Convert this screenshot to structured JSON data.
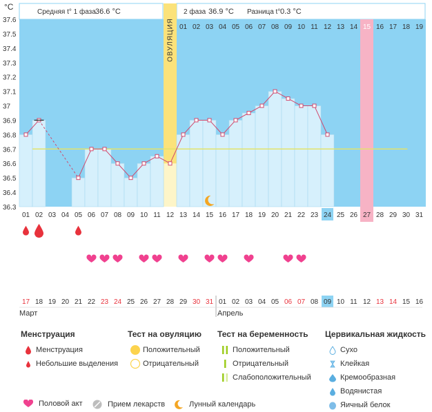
{
  "header": {
    "unit": "°C",
    "phase1_label": "Средняя t° 1 фаза",
    "phase1_value": "36.6 °C",
    "phase2_label": "2 фаза",
    "phase2_value": "36.9 °C",
    "diff_label": "Разница t°",
    "diff_value": "0.3 °C"
  },
  "chart_data": {
    "type": "line",
    "ovulation_label": "ОВУЛЯЦИЯ",
    "ylim": [
      36.3,
      37.6
    ],
    "y_ticks": [
      "37.6",
      "37.5",
      "37.4",
      "37.3",
      "37.2",
      "37.1",
      "37",
      "36.9",
      "36.8",
      "36.7",
      "36.6",
      "36.5",
      "36.4",
      "36.3"
    ],
    "cycle_days": [
      "01",
      "02",
      "03",
      "04",
      "05",
      "06",
      "07",
      "08",
      "09",
      "10",
      "11",
      "12",
      "13",
      "14",
      "15",
      "16",
      "17",
      "18",
      "19",
      "20",
      "21",
      "22",
      "23",
      "24",
      "25",
      "26",
      "27",
      "28",
      "29",
      "30",
      "31"
    ],
    "top_days": [
      "01",
      "02",
      "03",
      "04",
      "05",
      "06",
      "07",
      "08",
      "09",
      "10",
      "11",
      "12",
      "13",
      "14",
      "15",
      "16",
      "17",
      "18",
      "19"
    ],
    "calendar_dates": [
      "17",
      "18",
      "19",
      "20",
      "21",
      "22",
      "23",
      "24",
      "25",
      "26",
      "27",
      "28",
      "29",
      "30",
      "31",
      "01",
      "02",
      "03",
      "04",
      "05",
      "06",
      "07",
      "08",
      "09",
      "10",
      "11",
      "12",
      "13",
      "14",
      "15",
      "16"
    ],
    "weekend_dates": [
      0,
      6,
      7,
      13,
      14,
      20,
      21,
      27,
      28
    ],
    "today_index": 23,
    "highlight_index": 26,
    "ovulation_index": 11,
    "coverline": 36.7,
    "temperatures": [
      36.8,
      36.9,
      null,
      null,
      36.5,
      36.7,
      36.7,
      36.6,
      36.5,
      36.6,
      36.65,
      36.6,
      36.8,
      36.9,
      36.9,
      36.8,
      36.9,
      36.95,
      37.0,
      37.1,
      37.05,
      37.0,
      37.0,
      36.8,
      null,
      null,
      null,
      null,
      null,
      null,
      null
    ],
    "menstruation_large": [
      1
    ],
    "menstruation_small": [
      0,
      4
    ],
    "intercourse": [
      5,
      6,
      7,
      9,
      10,
      12,
      14,
      15,
      17,
      20,
      21
    ],
    "moon_index": 14
  },
  "months": {
    "first": "Март",
    "second": "Апрель"
  },
  "legend": {
    "menstruation": {
      "title": "Менструация",
      "items": [
        "Менструация",
        "Небольшие выделения"
      ]
    },
    "ovulation_test": {
      "title": "Тест на овуляцию",
      "items": [
        "Положительный",
        "Отрицательный"
      ]
    },
    "pregnancy_test": {
      "title": "Тест на беременность",
      "items": [
        "Положительный",
        "Отрицательный",
        "Слабоположительный"
      ]
    },
    "cervical": {
      "title": "Цервикальная жидкость",
      "items": [
        "Сухо",
        "Клейкая",
        "Кремообразная",
        "Водянистая",
        "Яичный белок"
      ]
    },
    "bottom": [
      "Половой акт",
      "Прием лекарств",
      "Лунный календарь"
    ]
  },
  "colors": {
    "plot_bg": "#8dd3f3",
    "bar_fill": "#d6f0fc",
    "bar_stroke": "#a8d9f0",
    "line": "#d04a6e",
    "ovulation": "#fbe27a",
    "highlight": "#f7b3c5",
    "coverline": "#e3e36a",
    "heart": "#f0418f",
    "drop": "#e8323c",
    "weekend": "#e8323c",
    "today": "#8dd3f3"
  }
}
